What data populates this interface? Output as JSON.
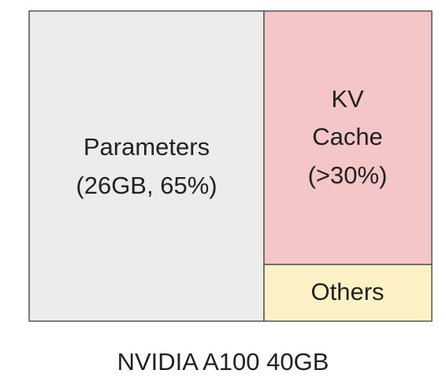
{
  "blocks": [
    {
      "lines": [
        "Parameters",
        "(26GB, 65%)"
      ]
    },
    {
      "lines": [
        "KV",
        "Cache",
        "(>30%)"
      ]
    },
    {
      "lines": [
        "Others"
      ]
    }
  ],
  "caption": "NVIDIA A100 40GB"
}
